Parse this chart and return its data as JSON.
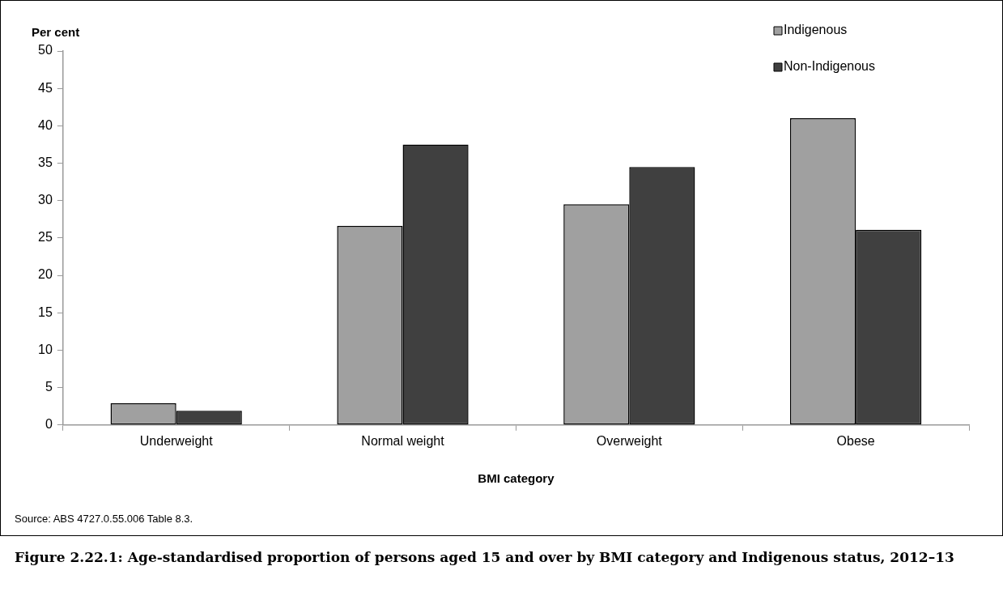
{
  "chart_data": {
    "type": "bar",
    "title": "Figure 2.22.1: Age-standardised proportion of persons aged 15 and over by BMI category and Indigenous status, 2012–13",
    "xlabel": "BMI category",
    "ylabel": "Per cent",
    "annotations": [
      "Source: ABS 4727.0.55.006 Table 8.3."
    ],
    "categories": [
      "Underweight",
      "Normal weight",
      "Overweight",
      "Obese"
    ],
    "series": [
      {
        "name": "Indigenous",
        "color": "#a0a0a0",
        "values": [
          2.9,
          26.6,
          29.5,
          41.0
        ]
      },
      {
        "name": "Non-Indigenous",
        "color": "#404040",
        "values": [
          1.9,
          37.5,
          34.5,
          26.1
        ]
      }
    ],
    "ylim": [
      0,
      50
    ],
    "yticks": [
      0,
      5,
      10,
      15,
      20,
      25,
      30,
      35,
      40,
      45,
      50
    ],
    "grid": false,
    "legend": "top right"
  }
}
